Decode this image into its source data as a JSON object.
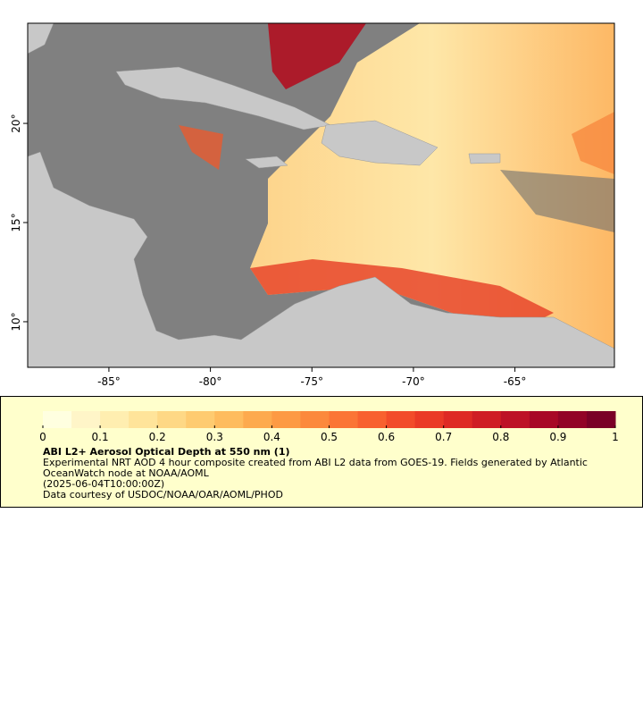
{
  "map": {
    "xlim": [
      -89,
      -60.1
    ],
    "ylim": [
      7.7,
      25.05
    ],
    "xticks": [
      {
        "value": -85,
        "label": "-85°"
      },
      {
        "value": -80,
        "label": "-80°"
      },
      {
        "value": -75,
        "label": "-75°"
      },
      {
        "value": -70,
        "label": "-70°"
      },
      {
        "value": -65,
        "label": "-65°"
      }
    ],
    "yticks": [
      {
        "value": 10,
        "label": "10°"
      },
      {
        "value": 15,
        "label": "15°"
      },
      {
        "value": 20,
        "label": "20°"
      }
    ]
  },
  "colorbar": {
    "range": [
      0,
      1
    ],
    "ticks": [
      0,
      0.1,
      0.2,
      0.3,
      0.4,
      0.5,
      0.6,
      0.7,
      0.8,
      0.9,
      1
    ],
    "colors": [
      "#ffffe0",
      "#fff5c8",
      "#ffeeb0",
      "#ffe49a",
      "#fed885",
      "#fecb70",
      "#febc5e",
      "#fdaa4e",
      "#fd9a44",
      "#fc893c",
      "#fb7535",
      "#f8612f",
      "#f24c2a",
      "#ea3a26",
      "#de2a24",
      "#cf1d24",
      "#bd1226",
      "#a80826",
      "#920326",
      "#7a0026"
    ]
  },
  "legend": {
    "title": "ABI L2+ Aerosol Optical Depth at 550 nm (1)",
    "lines": [
      "Experimental NRT AOD 4 hour composite created from ABI L2 data from GOES-19. Fields generated by Atlantic",
      "OceanWatch node at NOAA/AOML",
      "(2025-06-04T10:00:00Z)",
      "Data courtesy of USDOC/NOAA/OAR/AOML/PHOD"
    ]
  }
}
